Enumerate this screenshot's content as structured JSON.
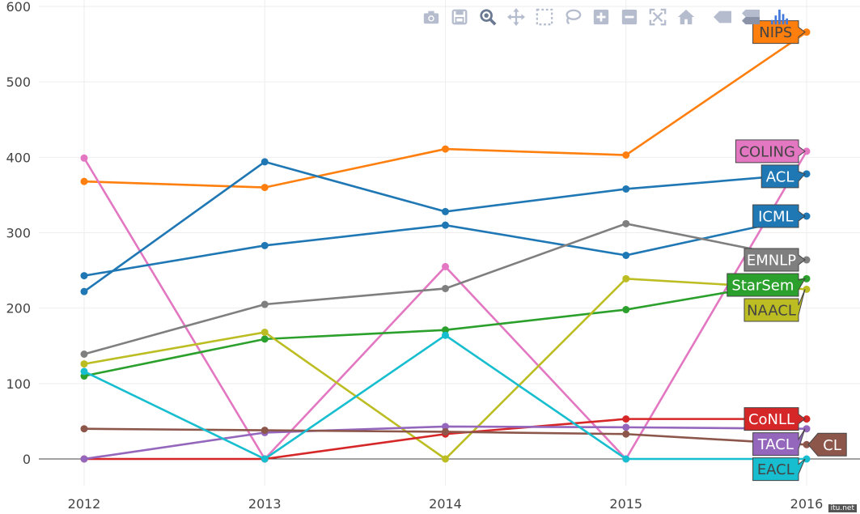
{
  "chart_data": {
    "type": "line",
    "title": "",
    "xlabel": "",
    "ylabel": "",
    "x": [
      2012,
      2013,
      2014,
      2015,
      2016
    ],
    "xlim": [
      2012,
      2016
    ],
    "ylim": [
      -40,
      600
    ],
    "yticks": [
      0,
      100,
      200,
      300,
      400,
      500,
      600
    ],
    "grid": true,
    "legend": "end-of-line labels",
    "series": [
      {
        "name": "NIPS",
        "color": "#ff7f0e",
        "text_color": "#444444",
        "values": [
          368,
          360,
          411,
          403,
          566
        ]
      },
      {
        "name": "COLING",
        "color": "#e377c2",
        "text_color": "#444444",
        "values": [
          399,
          0,
          255,
          0,
          408
        ]
      },
      {
        "name": "ACL",
        "color": "#1f77b4",
        "text_color": "#ffffff",
        "values": [
          222,
          394,
          328,
          358,
          378
        ]
      },
      {
        "name": "ICML",
        "color": "#1f77b4",
        "text_color": "#ffffff",
        "values": [
          243,
          283,
          310,
          270,
          322
        ]
      },
      {
        "name": "EMNLP",
        "color": "#7f7f7f",
        "text_color": "#ffffff",
        "values": [
          139,
          205,
          226,
          312,
          264
        ]
      },
      {
        "name": "StarSem",
        "color": "#2ca02c",
        "text_color": "#ffffff",
        "values": [
          110,
          159,
          171,
          198,
          239
        ]
      },
      {
        "name": "NAACL",
        "color": "#bcbd22",
        "text_color": "#444444",
        "values": [
          126,
          168,
          0,
          239,
          225
        ]
      },
      {
        "name": "CoNLL",
        "color": "#d62728",
        "text_color": "#ffffff",
        "values": [
          0,
          0,
          33,
          53,
          53
        ]
      },
      {
        "name": "TACL",
        "color": "#9467bd",
        "text_color": "#ffffff",
        "values": [
          0,
          35,
          43,
          42,
          40
        ]
      },
      {
        "name": "CL",
        "color": "#8c564b",
        "text_color": "#ffffff",
        "values": [
          40,
          38,
          36,
          33,
          19
        ]
      },
      {
        "name": "EACL",
        "color": "#17becf",
        "text_color": "#444444",
        "values": [
          116,
          0,
          164,
          0,
          0
        ]
      }
    ]
  },
  "modebar": {
    "buttons": [
      {
        "name": "camera-icon"
      },
      {
        "name": "save-icon"
      },
      {
        "name": "zoom-icon"
      },
      {
        "name": "pan-icon"
      },
      {
        "name": "box-select-icon"
      },
      {
        "name": "lasso-icon"
      },
      {
        "name": "zoom-in-icon"
      },
      {
        "name": "zoom-out-icon"
      },
      {
        "name": "autoscale-icon"
      },
      {
        "name": "home-icon"
      },
      {
        "name": "spike-icon"
      },
      {
        "name": "compare-icon"
      },
      {
        "name": "plotly-logo-icon"
      }
    ]
  },
  "watermark": "itu.net"
}
